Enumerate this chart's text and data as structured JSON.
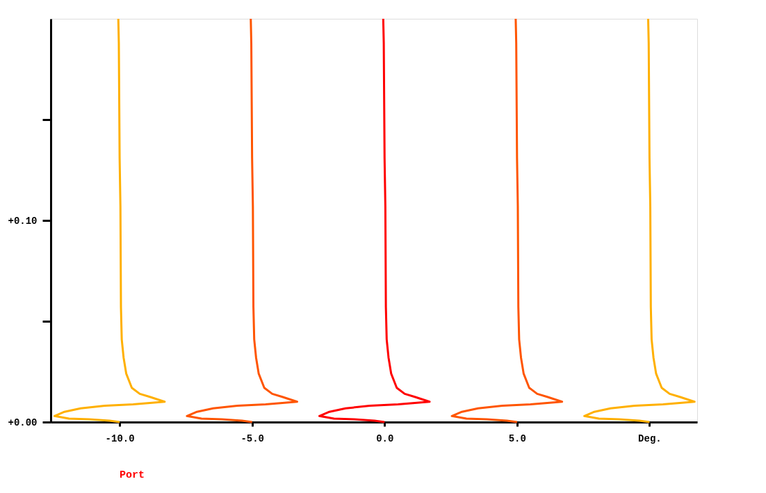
{
  "chart_data": {
    "type": "line",
    "xlim": [
      -12.6,
      11.8
    ],
    "ylim": [
      0,
      0.2
    ],
    "xticks": [
      {
        "value": -10,
        "label": "-10.0"
      },
      {
        "value": -5,
        "label": "-5.0"
      },
      {
        "value": 0,
        "label": "0.0"
      },
      {
        "value": 5,
        "label": "5.0"
      },
      {
        "value": 10,
        "label": "Deg."
      }
    ],
    "yticks": [
      {
        "value": 0,
        "label": "+0.00"
      },
      {
        "value": 0.05,
        "label": null
      },
      {
        "value": 0.1,
        "label": "+0.10"
      },
      {
        "value": 0.15,
        "label": null
      }
    ],
    "grid": false,
    "legend": false,
    "line_style": "solid",
    "marker": "none",
    "annotations": [
      "Port"
    ],
    "series": [
      {
        "color": "#ffb000",
        "x": [
          -10.05,
          -10.03,
          -10,
          -9.97,
          -9.95,
          -9.92,
          -9.85,
          -9.75,
          -9.54,
          -9.24,
          -8.86,
          -8.3,
          -9.49,
          -10.56,
          -11.47,
          -12.08,
          -12.46,
          -11.91,
          -11.14,
          -10.38,
          -10
        ],
        "values": [
          0.2,
          0.188,
          0.131,
          0.107,
          0.057,
          0.041,
          0.032,
          0.024,
          0.017,
          0.014,
          0.0125,
          0.0101,
          0.0088,
          0.0081,
          0.0068,
          0.0051,
          0.003,
          0.0017,
          0.0014,
          0.0007,
          0
        ]
      },
      {
        "color": "#ff5500",
        "x": [
          -5.05,
          -5.03,
          -5,
          -4.97,
          -4.95,
          -4.92,
          -4.85,
          -4.75,
          -4.54,
          -4.24,
          -3.86,
          -3.3,
          -4.49,
          -5.56,
          -6.47,
          -7.08,
          -7.46,
          -6.91,
          -6.14,
          -5.38,
          -5
        ],
        "values": [
          0.2,
          0.188,
          0.131,
          0.107,
          0.057,
          0.041,
          0.032,
          0.024,
          0.017,
          0.014,
          0.0125,
          0.0101,
          0.0088,
          0.0081,
          0.0068,
          0.0051,
          0.003,
          0.0017,
          0.0014,
          0.0007,
          0
        ]
      },
      {
        "color": "#ff0000",
        "x": [
          -0.05,
          -0.03,
          0,
          0.03,
          0.05,
          0.08,
          0.15,
          0.25,
          0.46,
          0.76,
          1.14,
          1.7,
          0.51,
          -0.56,
          -1.47,
          -2.08,
          -2.46,
          -1.91,
          -1.14,
          -0.38,
          0
        ],
        "values": [
          0.2,
          0.188,
          0.131,
          0.107,
          0.057,
          0.041,
          0.032,
          0.024,
          0.017,
          0.014,
          0.0125,
          0.0101,
          0.0088,
          0.0081,
          0.0068,
          0.0051,
          0.003,
          0.0017,
          0.0014,
          0.0007,
          0
        ]
      },
      {
        "color": "#ff5500",
        "x": [
          4.95,
          4.97,
          5,
          5.03,
          5.05,
          5.08,
          5.15,
          5.25,
          5.46,
          5.76,
          6.14,
          6.7,
          5.51,
          4.44,
          3.53,
          2.92,
          2.54,
          3.09,
          3.86,
          4.62,
          5
        ],
        "values": [
          0.2,
          0.188,
          0.131,
          0.107,
          0.057,
          0.041,
          0.032,
          0.024,
          0.017,
          0.014,
          0.0125,
          0.0101,
          0.0088,
          0.0081,
          0.0068,
          0.0051,
          0.003,
          0.0017,
          0.0014,
          0.0007,
          0
        ]
      },
      {
        "color": "#ffb000",
        "x": [
          9.95,
          9.97,
          10,
          10.03,
          10.05,
          10.08,
          10.15,
          10.25,
          10.46,
          10.76,
          11.14,
          11.7,
          10.51,
          9.44,
          8.53,
          7.92,
          7.54,
          8.09,
          8.86,
          9.62,
          10
        ],
        "values": [
          0.2,
          0.188,
          0.131,
          0.107,
          0.057,
          0.041,
          0.032,
          0.024,
          0.017,
          0.014,
          0.0125,
          0.0101,
          0.0088,
          0.0081,
          0.0068,
          0.0051,
          0.003,
          0.0017,
          0.0014,
          0.0007,
          0
        ]
      }
    ]
  }
}
